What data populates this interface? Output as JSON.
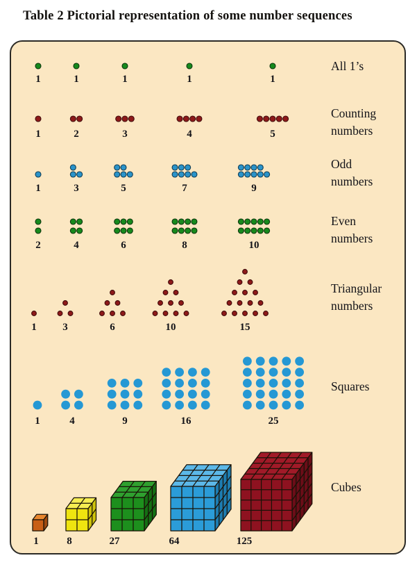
{
  "title": "Table 2 Pictorial representation of some number sequences",
  "palette": {
    "panel_bg": "#fbe7c2",
    "panel_border": "#2b2a26",
    "text": "#131318",
    "dots": {
      "green": {
        "fill": "#178a1d",
        "stroke": "#0c340c"
      },
      "maroon": {
        "fill": "#8e1a1a",
        "stroke": "#400b0b"
      },
      "blue": {
        "fill": "#2a93c9",
        "stroke": "#0f3c53"
      },
      "blue_big": {
        "fill": "#2598d4",
        "stroke": "#2598d4"
      }
    }
  },
  "rows": [
    {
      "id": "all-ones",
      "label_lines": [
        "All 1’s"
      ],
      "pattern": "single",
      "dot": "green",
      "values": [
        1,
        1,
        1,
        1,
        1
      ]
    },
    {
      "id": "counting",
      "label_lines": [
        "Counting",
        "numbers"
      ],
      "pattern": "row",
      "dot": "maroon",
      "values": [
        1,
        2,
        3,
        4,
        5
      ]
    },
    {
      "id": "odd",
      "label_lines": [
        "Odd",
        "numbers"
      ],
      "pattern": "two-row-odd",
      "dot": "blue",
      "values": [
        1,
        3,
        5,
        7,
        9
      ]
    },
    {
      "id": "even",
      "label_lines": [
        "Even",
        "numbers"
      ],
      "pattern": "two-row",
      "dot": "green",
      "values": [
        2,
        4,
        6,
        8,
        10
      ]
    },
    {
      "id": "triangular",
      "label_lines": [
        "Triangular",
        "numbers"
      ],
      "pattern": "triangle",
      "dot": "maroon",
      "values": [
        1,
        3,
        6,
        10,
        15
      ]
    },
    {
      "id": "squares",
      "label_lines": [
        "Squares"
      ],
      "pattern": "square",
      "dot": "blue_big",
      "values": [
        1,
        4,
        9,
        16,
        25
      ]
    },
    {
      "id": "cubes",
      "label_lines": [
        "Cubes"
      ],
      "pattern": "cube",
      "values": [
        1,
        8,
        27,
        64,
        125
      ],
      "cube_colors": [
        {
          "name": "orange",
          "top": "#e8872f",
          "front": "#c85f16",
          "side": "#9e4a10"
        },
        {
          "name": "yellow",
          "top": "#f6ee52",
          "front": "#efe410",
          "side": "#cfc30c"
        },
        {
          "name": "green",
          "top": "#2fa02f",
          "front": "#1d8f1d",
          "side": "#147014"
        },
        {
          "name": "blue",
          "top": "#5cb8e8",
          "front": "#2b9cd8",
          "side": "#1d7cb0"
        },
        {
          "name": "maroon",
          "top": "#a01a28",
          "front": "#8e1220",
          "side": "#6b0d18"
        }
      ]
    }
  ]
}
